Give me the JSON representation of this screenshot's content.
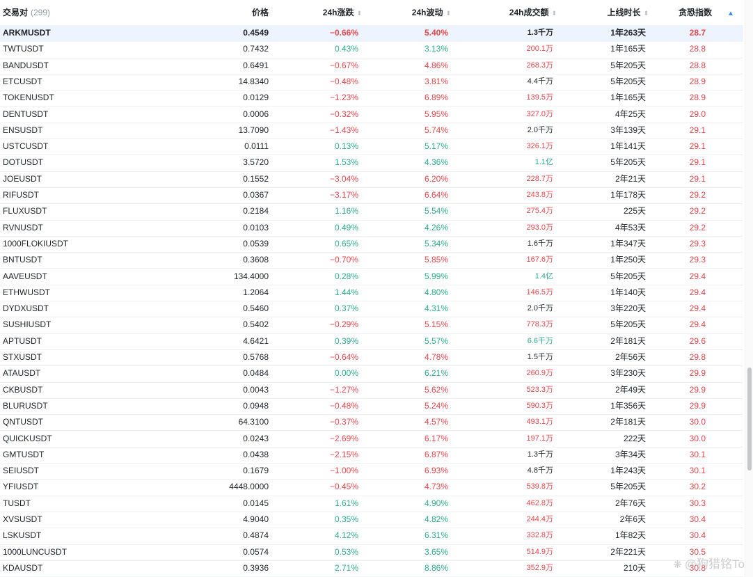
{
  "header": {
    "pair_label": "交易对",
    "pair_count": "(299)",
    "price_label": "价格",
    "change_label": "24h涨跌",
    "volatility_label": "24h波动",
    "amount_label": "24h成交额",
    "age_label": "上线时长",
    "fear_label": "贪恐指数"
  },
  "rows": [
    {
      "symbol": "ARKMUSDT",
      "price": "0.4549",
      "change": "−0.66%",
      "change_dir": "red",
      "vol": "5.40%",
      "vol_dir": "red",
      "amount": "1.3千万",
      "amount_dir": "dark",
      "age": "1年263天",
      "fear": "28.7"
    },
    {
      "symbol": "TWTUSDT",
      "price": "0.7432",
      "change": "0.43%",
      "change_dir": "green",
      "vol": "3.13%",
      "vol_dir": "green",
      "amount": "200.1万",
      "amount_dir": "red",
      "age": "1年165天",
      "fear": "28.8"
    },
    {
      "symbol": "BANDUSDT",
      "price": "0.6491",
      "change": "−0.67%",
      "change_dir": "red",
      "vol": "4.86%",
      "vol_dir": "red",
      "amount": "268.3万",
      "amount_dir": "red",
      "age": "5年205天",
      "fear": "28.8"
    },
    {
      "symbol": "ETCUSDT",
      "price": "14.8340",
      "change": "−0.48%",
      "change_dir": "red",
      "vol": "3.81%",
      "vol_dir": "red",
      "amount": "4.4千万",
      "amount_dir": "dark",
      "age": "5年205天",
      "fear": "28.9"
    },
    {
      "symbol": "TOKENUSDT",
      "price": "0.0129",
      "change": "−1.23%",
      "change_dir": "red",
      "vol": "6.89%",
      "vol_dir": "red",
      "amount": "139.5万",
      "amount_dir": "red",
      "age": "1年165天",
      "fear": "28.9"
    },
    {
      "symbol": "DENTUSDT",
      "price": "0.0006",
      "change": "−0.32%",
      "change_dir": "red",
      "vol": "5.95%",
      "vol_dir": "red",
      "amount": "327.0万",
      "amount_dir": "red",
      "age": "4年25天",
      "fear": "29.0"
    },
    {
      "symbol": "ENSUSDT",
      "price": "13.7090",
      "change": "−1.43%",
      "change_dir": "red",
      "vol": "5.74%",
      "vol_dir": "red",
      "amount": "2.0千万",
      "amount_dir": "dark",
      "age": "3年139天",
      "fear": "29.1"
    },
    {
      "symbol": "USTCUSDT",
      "price": "0.0111",
      "change": "0.13%",
      "change_dir": "green",
      "vol": "5.17%",
      "vol_dir": "green",
      "amount": "326.1万",
      "amount_dir": "red",
      "age": "1年141天",
      "fear": "29.1"
    },
    {
      "symbol": "DOTUSDT",
      "price": "3.5720",
      "change": "1.53%",
      "change_dir": "green",
      "vol": "4.36%",
      "vol_dir": "green",
      "amount": "1.1亿",
      "amount_dir": "green",
      "age": "5年205天",
      "fear": "29.1"
    },
    {
      "symbol": "JOEUSDT",
      "price": "0.1552",
      "change": "−3.04%",
      "change_dir": "red",
      "vol": "6.20%",
      "vol_dir": "red",
      "amount": "228.7万",
      "amount_dir": "red",
      "age": "2年21天",
      "fear": "29.1"
    },
    {
      "symbol": "RIFUSDT",
      "price": "0.0367",
      "change": "−3.17%",
      "change_dir": "red",
      "vol": "6.64%",
      "vol_dir": "red",
      "amount": "243.8万",
      "amount_dir": "red",
      "age": "1年178天",
      "fear": "29.2"
    },
    {
      "symbol": "FLUXUSDT",
      "price": "0.2184",
      "change": "1.16%",
      "change_dir": "green",
      "vol": "5.54%",
      "vol_dir": "green",
      "amount": "275.4万",
      "amount_dir": "red",
      "age": "225天",
      "fear": "29.2"
    },
    {
      "symbol": "RVNUSDT",
      "price": "0.0103",
      "change": "0.49%",
      "change_dir": "green",
      "vol": "4.26%",
      "vol_dir": "green",
      "amount": "293.0万",
      "amount_dir": "red",
      "age": "4年53天",
      "fear": "29.2"
    },
    {
      "symbol": "1000FLOKIUSDT",
      "price": "0.0539",
      "change": "0.65%",
      "change_dir": "green",
      "vol": "5.34%",
      "vol_dir": "green",
      "amount": "1.6千万",
      "amount_dir": "dark",
      "age": "1年347天",
      "fear": "29.3"
    },
    {
      "symbol": "BNTUSDT",
      "price": "0.3608",
      "change": "−0.70%",
      "change_dir": "red",
      "vol": "5.85%",
      "vol_dir": "red",
      "amount": "167.6万",
      "amount_dir": "red",
      "age": "1年250天",
      "fear": "29.3"
    },
    {
      "symbol": "AAVEUSDT",
      "price": "134.4000",
      "change": "0.28%",
      "change_dir": "green",
      "vol": "5.99%",
      "vol_dir": "green",
      "amount": "1.4亿",
      "amount_dir": "green",
      "age": "5年205天",
      "fear": "29.4"
    },
    {
      "symbol": "ETHWUSDT",
      "price": "1.2064",
      "change": "1.44%",
      "change_dir": "green",
      "vol": "4.80%",
      "vol_dir": "green",
      "amount": "146.5万",
      "amount_dir": "red",
      "age": "1年140天",
      "fear": "29.4"
    },
    {
      "symbol": "DYDXUSDT",
      "price": "0.5460",
      "change": "0.37%",
      "change_dir": "green",
      "vol": "4.31%",
      "vol_dir": "green",
      "amount": "2.0千万",
      "amount_dir": "dark",
      "age": "3年220天",
      "fear": "29.4"
    },
    {
      "symbol": "SUSHIUSDT",
      "price": "0.5402",
      "change": "−0.29%",
      "change_dir": "red",
      "vol": "5.15%",
      "vol_dir": "red",
      "amount": "778.3万",
      "amount_dir": "red",
      "age": "5年205天",
      "fear": "29.4"
    },
    {
      "symbol": "APTUSDT",
      "price": "4.6421",
      "change": "0.39%",
      "change_dir": "green",
      "vol": "5.57%",
      "vol_dir": "green",
      "amount": "6.6千万",
      "amount_dir": "green",
      "age": "2年181天",
      "fear": "29.6"
    },
    {
      "symbol": "STXUSDT",
      "price": "0.5768",
      "change": "−0.64%",
      "change_dir": "red",
      "vol": "4.78%",
      "vol_dir": "red",
      "amount": "1.5千万",
      "amount_dir": "dark",
      "age": "2年56天",
      "fear": "29.8"
    },
    {
      "symbol": "ATAUSDT",
      "price": "0.0484",
      "change": "0.00%",
      "change_dir": "green",
      "vol": "6.21%",
      "vol_dir": "green",
      "amount": "260.9万",
      "amount_dir": "red",
      "age": "3年230天",
      "fear": "29.9"
    },
    {
      "symbol": "CKBUSDT",
      "price": "0.0043",
      "change": "−1.27%",
      "change_dir": "red",
      "vol": "5.62%",
      "vol_dir": "red",
      "amount": "523.3万",
      "amount_dir": "red",
      "age": "2年49天",
      "fear": "29.9"
    },
    {
      "symbol": "BLURUSDT",
      "price": "0.0948",
      "change": "−0.48%",
      "change_dir": "red",
      "vol": "5.24%",
      "vol_dir": "red",
      "amount": "590.3万",
      "amount_dir": "red",
      "age": "1年356天",
      "fear": "29.9"
    },
    {
      "symbol": "QNTUSDT",
      "price": "64.3100",
      "change": "−0.37%",
      "change_dir": "red",
      "vol": "4.57%",
      "vol_dir": "red",
      "amount": "493.1万",
      "amount_dir": "red",
      "age": "2年181天",
      "fear": "30.0"
    },
    {
      "symbol": "QUICKUSDT",
      "price": "0.0243",
      "change": "−2.69%",
      "change_dir": "red",
      "vol": "6.17%",
      "vol_dir": "red",
      "amount": "197.1万",
      "amount_dir": "red",
      "age": "222天",
      "fear": "30.0"
    },
    {
      "symbol": "GMTUSDT",
      "price": "0.0438",
      "change": "−2.15%",
      "change_dir": "red",
      "vol": "6.87%",
      "vol_dir": "red",
      "amount": "1.3千万",
      "amount_dir": "dark",
      "age": "3年34天",
      "fear": "30.1"
    },
    {
      "symbol": "SEIUSDT",
      "price": "0.1679",
      "change": "−1.00%",
      "change_dir": "red",
      "vol": "6.93%",
      "vol_dir": "red",
      "amount": "4.8千万",
      "amount_dir": "dark",
      "age": "1年243天",
      "fear": "30.1"
    },
    {
      "symbol": "YFIUSDT",
      "price": "4448.0000",
      "change": "−0.45%",
      "change_dir": "red",
      "vol": "4.73%",
      "vol_dir": "red",
      "amount": "539.8万",
      "amount_dir": "red",
      "age": "5年205天",
      "fear": "30.2"
    },
    {
      "symbol": "TUSDT",
      "price": "0.0145",
      "change": "1.61%",
      "change_dir": "green",
      "vol": "4.90%",
      "vol_dir": "green",
      "amount": "462.8万",
      "amount_dir": "red",
      "age": "2年76天",
      "fear": "30.3"
    },
    {
      "symbol": "XVSUSDT",
      "price": "4.9040",
      "change": "0.35%",
      "change_dir": "green",
      "vol": "4.82%",
      "vol_dir": "green",
      "amount": "244.4万",
      "amount_dir": "red",
      "age": "2年6天",
      "fear": "30.4"
    },
    {
      "symbol": "LSKUSDT",
      "price": "0.4874",
      "change": "4.12%",
      "change_dir": "green",
      "vol": "6.31%",
      "vol_dir": "green",
      "amount": "332.8万",
      "amount_dir": "red",
      "age": "1年82天",
      "fear": "30.4"
    },
    {
      "symbol": "1000LUNCUSDT",
      "price": "0.0574",
      "change": "0.53%",
      "change_dir": "green",
      "vol": "3.65%",
      "vol_dir": "green",
      "amount": "514.9万",
      "amount_dir": "red",
      "age": "2年221天",
      "fear": "30.5"
    },
    {
      "symbol": "KDAUSDT",
      "price": "0.3936",
      "change": "2.71%",
      "change_dir": "green",
      "vol": "8.86%",
      "vol_dir": "green",
      "amount": "352.9万",
      "amount_dir": "red",
      "age": "210天",
      "fear": "30.8"
    }
  ],
  "watermark": {
    "text": "@狗猎铭To"
  },
  "colors": {
    "up": "#2bab8f",
    "down": "#e5454a",
    "highlight": "#eef4fd",
    "sort_active": "#3c8fe8"
  }
}
